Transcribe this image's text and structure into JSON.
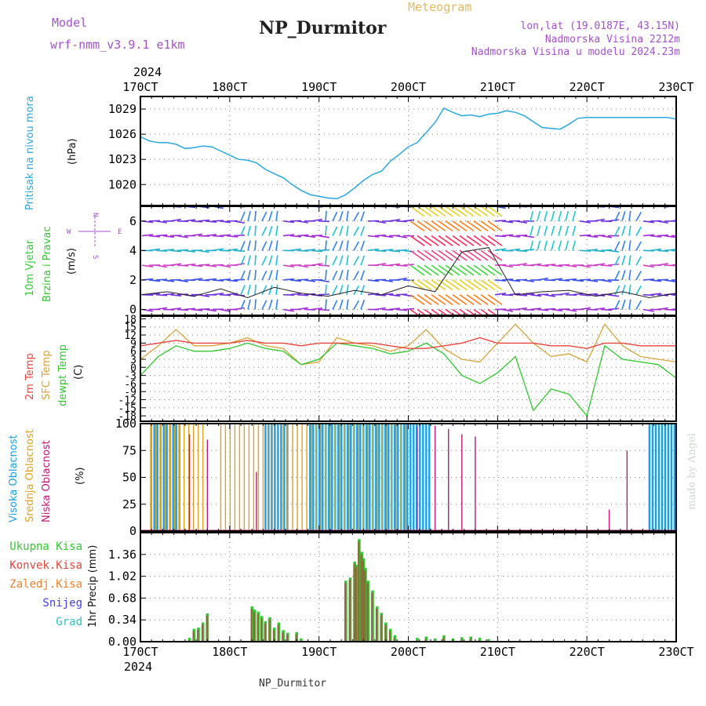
{
  "header": {
    "model_label": "Model",
    "model_name": "wrf-nmm_v3.9.1  e1km",
    "meteogram": "Meteogram",
    "station": "NP_Durmitor",
    "lonlat": "lon,lat (19.0187E, 43.15N)",
    "elevation": "Nadmorska Visina 2212m",
    "model_elevation": "Nadmorska Visina u modelu 2024.23m"
  },
  "footer": {
    "station": "NP_Durmitor",
    "credit": "made by Angel"
  },
  "colors": {
    "pressure": "#29a8e0",
    "wind_label": "#2ec92e",
    "t2m": "#e8453c",
    "sfc": "#d8a23a",
    "dewpt": "#2ec92e",
    "high_cloud": "#1aa0e6",
    "mid_cloud": "#e0a020",
    "low_cloud": "#c0177a",
    "total_precip": "#34c834",
    "conv_precip": "#e8453c",
    "frozen_precip": "#f08030",
    "snow": "#4040e0",
    "graupel": "#30c0c0",
    "purple": "#a64fd1"
  },
  "chart_data": [
    {
      "type": "line",
      "name": "pressure",
      "ylabel": "Pritisak na nivou mora",
      "unit": "(hPa)",
      "x_labels": [
        "170CT",
        "180CT",
        "190CT",
        "200CT",
        "210CT",
        "220CT",
        "230CT"
      ],
      "year": "2024",
      "yticks": [
        1020,
        1023,
        1026,
        1029
      ],
      "ylim": [
        1017.5,
        1030.5
      ],
      "x": [
        0,
        0.1,
        0.2,
        0.3,
        0.4,
        0.5,
        0.6,
        0.7,
        0.8,
        0.9,
        1.0,
        1.1,
        1.2,
        1.3,
        1.4,
        1.5,
        1.6,
        1.7,
        1.8,
        1.9,
        2.0,
        2.1,
        2.2,
        2.3,
        2.4,
        2.5,
        2.6,
        2.7,
        2.8,
        2.9,
        3.0,
        3.1,
        3.2,
        3.3,
        3.4,
        3.5,
        3.6,
        3.7,
        3.8,
        3.9,
        4.0,
        4.1,
        4.2,
        4.3,
        4.4,
        4.5,
        4.6,
        4.7,
        4.8,
        4.9,
        5.0,
        5.1,
        5.2,
        5.3,
        5.4,
        5.5,
        5.6,
        5.7,
        5.8,
        5.9,
        6.0
      ],
      "values": [
        1025.7,
        1025.2,
        1025.0,
        1025.0,
        1024.8,
        1024.3,
        1024.4,
        1024.6,
        1024.5,
        1024.0,
        1023.5,
        1023.0,
        1022.9,
        1022.6,
        1021.8,
        1021.3,
        1020.8,
        1020.0,
        1019.3,
        1018.8,
        1018.6,
        1018.4,
        1018.3,
        1018.8,
        1019.6,
        1020.5,
        1021.2,
        1021.6,
        1022.8,
        1023.6,
        1024.5,
        1025.0,
        1026.2,
        1027.4,
        1029.1,
        1028.6,
        1028.2,
        1028.3,
        1028.1,
        1028.4,
        1028.5,
        1028.8,
        1028.6,
        1028.2,
        1027.5,
        1026.8,
        1026.7,
        1026.6,
        1027.2,
        1027.9,
        1028.0,
        1028.0,
        1028.0,
        1028.0,
        1028.0,
        1028.0,
        1028.0,
        1028.0,
        1028.0,
        1028.0,
        1027.8
      ]
    },
    {
      "type": "line",
      "name": "wind",
      "ylabel_1": "10m  Vjetar",
      "ylabel_2": "Brzina i Pravac",
      "unit": "(m/s)",
      "yticks": [
        0,
        2,
        4,
        6
      ],
      "ylim": [
        -0.4,
        7
      ],
      "compass": {
        "n": "N",
        "s": "S",
        "e": "E",
        "w": "W"
      },
      "x": [
        0,
        0.3,
        0.6,
        0.9,
        1.2,
        1.5,
        1.8,
        2.1,
        2.4,
        2.7,
        3.0,
        3.3,
        3.6,
        3.9,
        4.2,
        4.5,
        4.8,
        5.1,
        5.4,
        5.7,
        6.0
      ],
      "values": [
        1.0,
        1.2,
        0.9,
        1.4,
        0.8,
        1.5,
        1.1,
        0.9,
        1.3,
        1.0,
        1.6,
        1.2,
        3.9,
        4.2,
        1.0,
        1.2,
        1.3,
        0.9,
        1.2,
        0.8,
        1.1
      ]
    },
    {
      "type": "line",
      "name": "temperature",
      "label_t2m": "2m  Temp",
      "label_sfc": "SFC  Temp",
      "label_dew": "dewpt  Temp",
      "unit": "(C)",
      "ytick_labels": [
        "18",
        "15",
        "12",
        "9",
        "6",
        "3",
        "0",
        "-3",
        "-6",
        "-9",
        "-12",
        "-15",
        "-18"
      ],
      "ylim": [
        -20,
        19
      ],
      "x": [
        0,
        0.2,
        0.4,
        0.6,
        0.8,
        1.0,
        1.2,
        1.4,
        1.6,
        1.8,
        2.0,
        2.2,
        2.4,
        2.6,
        2.8,
        3.0,
        3.2,
        3.4,
        3.6,
        3.8,
        4.0,
        4.2,
        4.4,
        4.6,
        4.8,
        5.0,
        5.2,
        5.4,
        5.6,
        5.8,
        6.0
      ],
      "series": [
        {
          "name": "2m  Temp",
          "values": [
            8,
            9,
            10,
            9,
            9,
            9,
            10,
            9,
            9,
            8,
            9,
            9,
            9,
            9,
            8,
            7,
            7,
            8,
            9,
            11,
            9,
            9,
            9,
            8,
            8,
            7,
            9,
            9,
            8,
            8,
            8
          ]
        },
        {
          "name": "SFC  Temp",
          "values": [
            3,
            8,
            14,
            8,
            8,
            9,
            11,
            8,
            7,
            1,
            2,
            11,
            9,
            8,
            6,
            8,
            14,
            7,
            3,
            2,
            9,
            16,
            9,
            4,
            5,
            2,
            16,
            8,
            4,
            3,
            2
          ]
        },
        {
          "name": "dewpt Temp",
          "values": [
            -3,
            4,
            8,
            6,
            6,
            7,
            9,
            7,
            6,
            1,
            3,
            9,
            8,
            7,
            5,
            6,
            9,
            5,
            -3,
            -6,
            -2,
            4,
            -16,
            -8,
            -10,
            -18,
            8,
            3,
            2,
            1,
            -4
          ]
        }
      ]
    },
    {
      "type": "bar",
      "name": "cloud",
      "label_high": "Visoka  Oblacnost",
      "label_mid": "Srednja  Oblacnost",
      "label_low": "Niska  Oblacnost",
      "unit": "(%)",
      "yticks": [
        0,
        25,
        50,
        75,
        100
      ],
      "ylim": [
        0,
        100
      ],
      "series": [
        {
          "name": "Visoka  Oblacnost",
          "segments": [
            [
              0.12,
              0.45
            ],
            [
              1.4,
              1.65
            ],
            [
              1.9,
              3.25
            ],
            [
              5.7,
              6.0
            ]
          ],
          "value": 100
        },
        {
          "name": "Srednja  Oblacnost",
          "segments": [
            [
              0.12,
              0.75
            ],
            [
              0.9,
              1.5
            ],
            [
              1.6,
              3.0
            ]
          ],
          "value": 100
        },
        {
          "name": "Niska  Oblacnost",
          "spikes": [
            [
              0.55,
              90
            ],
            [
              0.75,
              85
            ],
            [
              1.3,
              55
            ],
            [
              3.1,
              98
            ],
            [
              3.3,
              98
            ],
            [
              3.45,
              95
            ],
            [
              3.6,
              90
            ],
            [
              3.75,
              88
            ],
            [
              5.25,
              20
            ],
            [
              5.45,
              75
            ]
          ]
        }
      ]
    },
    {
      "type": "bar",
      "name": "precipitation",
      "unit": "1hr Precip (mm)",
      "legend": [
        "Ukupna  Kisa",
        "Konvek.Kisa",
        "Zaledj.Kisa",
        "Snijeg",
        "Grad"
      ],
      "yticks": [
        0,
        0.34,
        0.68,
        1.02,
        1.36
      ],
      "ylim": [
        0,
        1.7
      ],
      "x": [
        0.55,
        0.6,
        0.65,
        0.7,
        0.75,
        1.25,
        1.28,
        1.32,
        1.36,
        1.4,
        1.45,
        1.5,
        1.55,
        1.6,
        1.65,
        1.75,
        1.8,
        2.3,
        2.35,
        2.4,
        2.42,
        2.45,
        2.48,
        2.5,
        2.52,
        2.55,
        2.6,
        2.65,
        2.7,
        2.75,
        2.8,
        2.85,
        3.1,
        3.2,
        3.3,
        3.4,
        3.5,
        3.6,
        3.7,
        3.8,
        3.9
      ],
      "values": [
        0.06,
        0.2,
        0.22,
        0.3,
        0.44,
        0.55,
        0.5,
        0.47,
        0.4,
        0.32,
        0.38,
        0.22,
        0.3,
        0.18,
        0.14,
        0.15,
        0.05,
        0.95,
        1.0,
        1.25,
        1.2,
        1.6,
        1.4,
        1.3,
        1.15,
        0.95,
        0.8,
        0.55,
        0.45,
        0.3,
        0.2,
        0.1,
        0.06,
        0.08,
        0.05,
        0.1,
        0.05,
        0.07,
        0.08,
        0.06,
        0.04
      ]
    }
  ]
}
